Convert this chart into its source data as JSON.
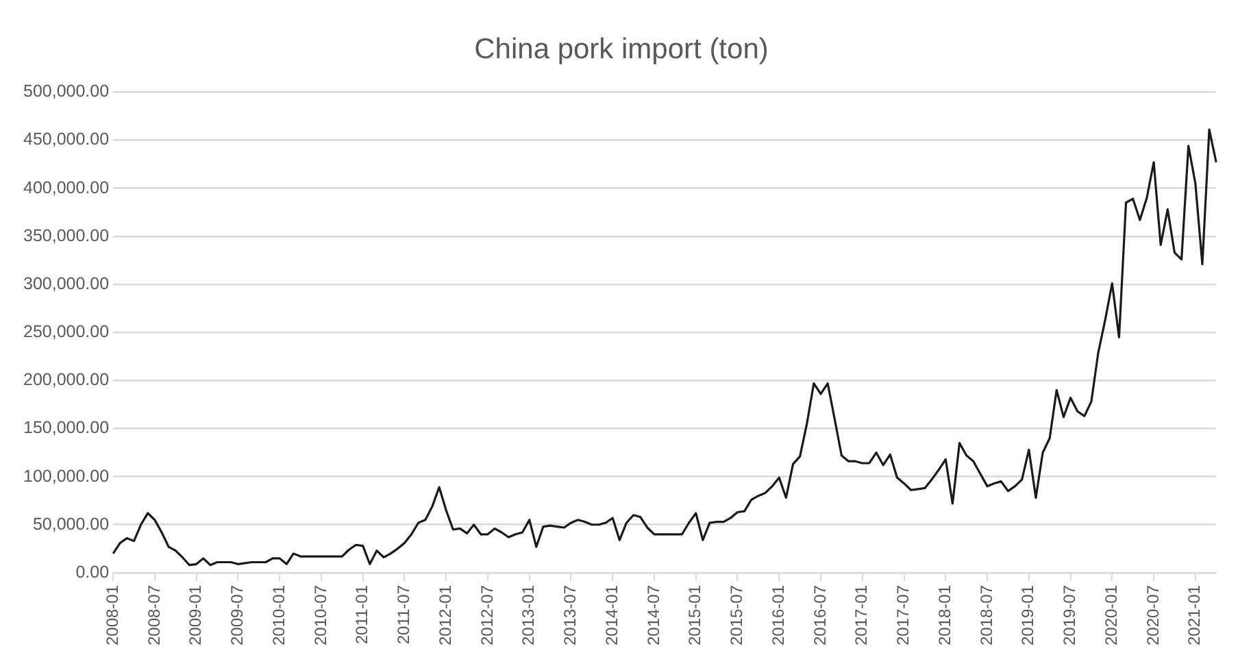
{
  "chart_data": {
    "type": "line",
    "title": "China pork import (ton)",
    "categories": [
      "2008-01",
      null,
      null,
      null,
      null,
      null,
      "2008-07",
      null,
      null,
      null,
      null,
      null,
      "2009-01",
      null,
      null,
      null,
      null,
      null,
      "2009-07",
      null,
      null,
      null,
      null,
      null,
      "2010-01",
      null,
      null,
      null,
      null,
      null,
      "2010-07",
      null,
      null,
      null,
      null,
      null,
      "2011-01",
      null,
      null,
      null,
      null,
      null,
      "2011-07",
      null,
      null,
      null,
      null,
      null,
      "2012-01",
      null,
      null,
      null,
      null,
      null,
      "2012-07",
      null,
      null,
      null,
      null,
      null,
      "2013-01",
      null,
      null,
      null,
      null,
      null,
      "2013-07",
      null,
      null,
      null,
      null,
      null,
      "2014-01",
      null,
      null,
      null,
      null,
      null,
      "2014-07",
      null,
      null,
      null,
      null,
      null,
      "2015-01",
      null,
      null,
      null,
      null,
      null,
      "2015-07",
      null,
      null,
      null,
      null,
      null,
      "2016-01",
      null,
      null,
      null,
      null,
      null,
      "2016-07",
      null,
      null,
      null,
      null,
      null,
      "2017-01",
      null,
      null,
      null,
      null,
      null,
      "2017-07",
      null,
      null,
      null,
      null,
      null,
      "2018-01",
      null,
      null,
      null,
      null,
      null,
      "2018-07",
      null,
      null,
      null,
      null,
      null,
      "2019-01",
      null,
      null,
      null,
      null,
      null,
      "2019-07",
      null,
      null,
      null,
      null,
      null,
      "2020-01",
      null,
      null,
      null,
      null,
      null,
      "2020-07",
      null,
      null,
      null,
      null,
      null,
      "2021-01",
      null,
      null,
      null
    ],
    "series": [
      {
        "color": "#1a1a1a",
        "values": [
          20000,
          31000,
          36000,
          33000,
          50000,
          62000,
          55000,
          42000,
          27000,
          23000,
          16000,
          8000,
          9000,
          15000,
          8000,
          11000,
          11000,
          11000,
          9000,
          10000,
          11000,
          11000,
          11000,
          15000,
          15000,
          9000,
          20000,
          17000,
          17000,
          17000,
          17000,
          17000,
          17000,
          17000,
          24000,
          29000,
          28000,
          9000,
          23000,
          16000,
          20000,
          25000,
          31000,
          40000,
          52000,
          55000,
          69000,
          89000,
          65000,
          45000,
          46000,
          41000,
          50000,
          40000,
          40000,
          46000,
          42000,
          37000,
          40000,
          42000,
          55000,
          27000,
          48000,
          49000,
          48000,
          47000,
          52000,
          55000,
          53000,
          50000,
          50000,
          52000,
          57000,
          34000,
          52000,
          60000,
          58000,
          47000,
          40000,
          40000,
          40000,
          40000,
          40000,
          52000,
          62000,
          34000,
          52000,
          53000,
          53000,
          57000,
          63000,
          64000,
          76000,
          80000,
          83000,
          90000,
          99000,
          78000,
          113000,
          121000,
          155000,
          197000,
          186000,
          197000,
          160000,
          122000,
          116000,
          116000,
          114000,
          114000,
          125000,
          112000,
          123000,
          99000,
          93000,
          86000,
          87000,
          88000,
          97000,
          107000,
          118000,
          72000,
          135000,
          122000,
          116000,
          103000,
          90000,
          93000,
          95000,
          85000,
          90000,
          97000,
          128000,
          78000,
          125000,
          140000,
          190000,
          162000,
          182000,
          168000,
          163000,
          178000,
          229000,
          263000,
          301000,
          245000,
          385000,
          389000,
          367000,
          390000,
          427000,
          341000,
          378000,
          333000,
          326000,
          444000,
          405000,
          321000,
          461000,
          427000
        ]
      }
    ],
    "ylim": [
      0,
      500000
    ],
    "yticks": [
      {
        "value": 0,
        "label": "0.00"
      },
      {
        "value": 50000,
        "label": "50,000.00"
      },
      {
        "value": 100000,
        "label": "100,000.00"
      },
      {
        "value": 150000,
        "label": "150,000.00"
      },
      {
        "value": 200000,
        "label": "200,000.00"
      },
      {
        "value": 250000,
        "label": "250,000.00"
      },
      {
        "value": 300000,
        "label": "300,000.00"
      },
      {
        "value": 350000,
        "label": "350,000.00"
      },
      {
        "value": 400000,
        "label": "400,000.00"
      },
      {
        "value": 450000,
        "label": "450,000.00"
      },
      {
        "value": 500000,
        "label": "500,000.00"
      }
    ],
    "grid": "y",
    "legend": false,
    "marker": "none",
    "line_style": "solid"
  }
}
